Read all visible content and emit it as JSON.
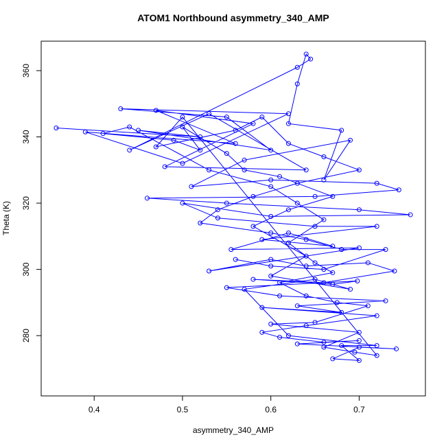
{
  "chart_data": {
    "type": "line",
    "markers": "circle",
    "title": "ATOM1 Northbound asymmetry_340_AMP",
    "x_label": "asymmetry_340_AMP",
    "y_label": "Theta (K)",
    "xlim": [
      0.34,
      0.775
    ],
    "ylim": [
      261.8,
      368.9
    ],
    "xticks": [
      0.4,
      0.5,
      0.6,
      0.7
    ],
    "yticks": [
      280,
      300,
      320,
      340,
      360
    ],
    "series": [
      {
        "color": "#0000ff",
        "x": [
          0.357,
          0.52,
          0.45,
          0.6,
          0.55,
          0.43,
          0.62,
          0.5,
          0.39,
          0.56,
          0.47,
          0.58,
          0.48,
          0.64,
          0.53,
          0.44,
          0.63,
          0.645,
          0.64,
          0.63,
          0.62,
          0.68,
          0.66,
          0.69,
          0.57,
          0.51,
          0.6,
          0.72,
          0.745,
          0.65,
          0.46,
          0.55,
          0.7,
          0.758,
          0.6,
          0.5,
          0.54,
          0.65,
          0.72,
          0.59,
          0.67,
          0.62,
          0.555,
          0.7,
          0.53,
          0.6,
          0.64,
          0.71,
          0.74,
          0.66,
          0.58,
          0.67,
          0.698,
          0.55,
          0.61,
          0.73,
          0.63,
          0.68,
          0.59,
          0.72,
          0.64,
          0.59,
          0.61,
          0.66,
          0.7,
          0.63,
          0.742,
          0.7,
          0.67,
          0.7,
          0.68,
          0.72,
          0.62,
          0.57,
          0.65,
          0.69,
          0.6,
          0.64,
          0.58,
          0.62,
          0.67,
          0.61,
          0.57,
          0.55,
          0.5,
          0.52,
          0.49,
          0.41,
          0.44,
          0.53,
          0.6,
          0.63,
          0.66,
          0.62,
          0.65,
          0.67,
          0.61,
          0.64,
          0.675,
          0.71,
          0.65,
          0.6,
          0.7,
          0.66,
          0.695,
          0.72,
          0.5,
          0.47,
          0.56,
          0.59,
          0.62,
          0.66,
          0.7,
          0.63,
          0.58,
          0.54,
          0.52,
          0.6,
          0.64,
          0.68,
          0.73,
          0.66,
          0.6,
          0.56
        ],
        "values": [
          342.7,
          340,
          342,
          336,
          346,
          348.5,
          347,
          332,
          341.5,
          338,
          348,
          344,
          331,
          330,
          347,
          336,
          361,
          363.5,
          365,
          356,
          344,
          342,
          327,
          339,
          333,
          325,
          327,
          326,
          324,
          322,
          321.5,
          320,
          318,
          316.5,
          316,
          320,
          315.5,
          313,
          313,
          309,
          307,
          311,
          306,
          306.5,
          299.5,
          303,
          301,
          302,
          299.5,
          296,
          297,
          295.5,
          296.5,
          294.5,
          292,
          290.5,
          289,
          287,
          288.5,
          286,
          283,
          281,
          279.5,
          278,
          278.5,
          277.5,
          276,
          276.5,
          273,
          272.5,
          277,
          277,
          280,
          294,
          297,
          294,
          298,
          304,
          313,
          318,
          322,
          328,
          330,
          335,
          343,
          336,
          339,
          341,
          343,
          330,
          325,
          320,
          315,
          308,
          302,
          299,
          296,
          292,
          290,
          289,
          284,
          283.5,
          281,
          276.5,
          275,
          274,
          346,
          337,
          342,
          346,
          338,
          334,
          330,
          326,
          322,
          318,
          314,
          311,
          309,
          306,
          306,
          300,
          301,
          303
        ]
      }
    ]
  }
}
